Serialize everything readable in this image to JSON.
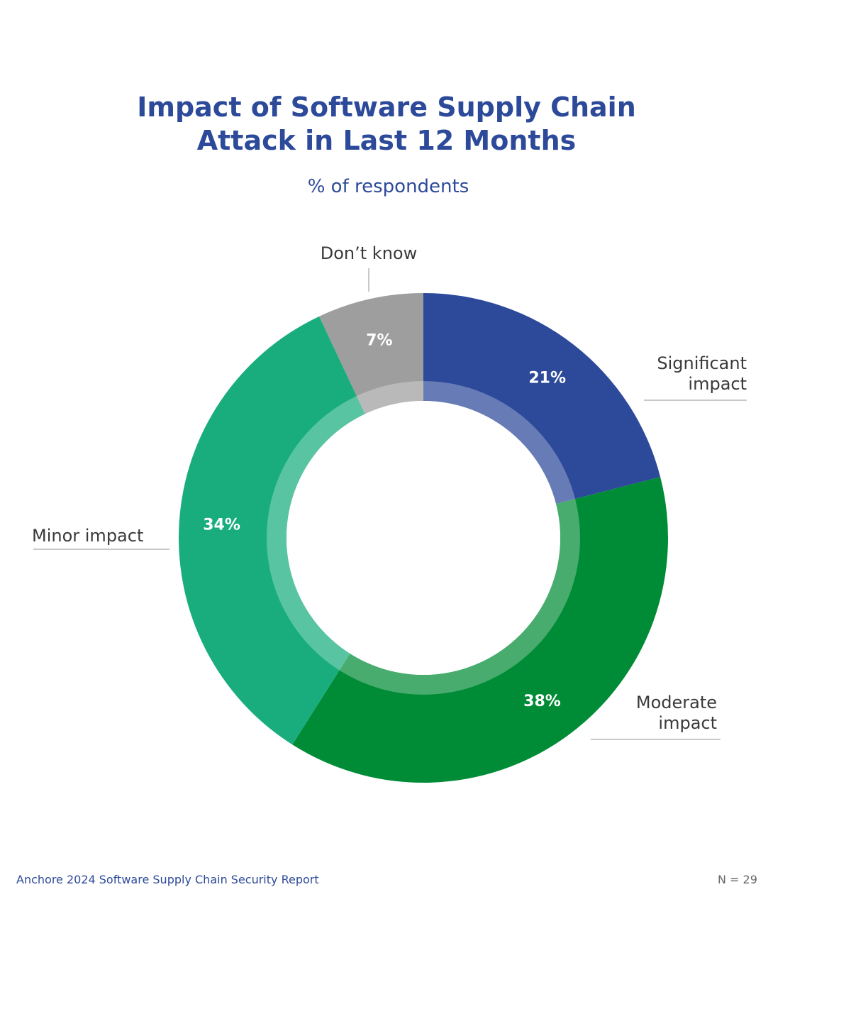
{
  "chart_data": {
    "type": "pie",
    "title_lines": [
      "Impact of Software Supply Chain",
      "Attack in Last 12 Months"
    ],
    "subtitle": "% of respondents",
    "categories": [
      "Significant impact",
      "Moderate impact",
      "Minor impact",
      "Don’t know"
    ],
    "values": [
      21,
      38,
      34,
      7
    ],
    "value_labels": [
      "21%",
      "38%",
      "34%",
      "7%"
    ],
    "callouts": [
      [
        "Significant",
        "impact"
      ],
      [
        "Moderate",
        "impact"
      ],
      [
        "Minor impact"
      ],
      [
        "Don’t know"
      ]
    ],
    "colors": [
      "#2d4a9a",
      "#008c36",
      "#19ad7e",
      "#9e9e9e"
    ],
    "donut": true
  },
  "footer": {
    "source": "Anchore 2024 Software Supply Chain Security Report",
    "n": "N = 29"
  }
}
